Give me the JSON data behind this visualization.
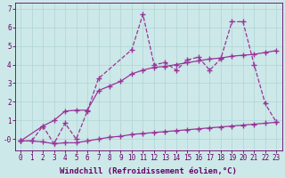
{
  "line1_x": [
    0,
    1,
    2,
    3,
    4,
    5,
    6,
    7,
    10,
    11,
    12,
    13,
    14,
    15,
    16,
    17,
    18,
    19,
    20,
    21,
    22,
    23
  ],
  "line1_y": [
    -0.1,
    -0.1,
    0.7,
    -0.25,
    0.85,
    0.0,
    1.5,
    3.25,
    4.8,
    6.7,
    4.0,
    4.1,
    3.7,
    4.25,
    4.4,
    3.7,
    4.3,
    6.3,
    6.3,
    4.0,
    1.9,
    0.9
  ],
  "line2_x": [
    0,
    2,
    3,
    4,
    5,
    6,
    7,
    8,
    9,
    10,
    11,
    12,
    13,
    14,
    15,
    16,
    17,
    18,
    19,
    20,
    21,
    22,
    23
  ],
  "line2_y": [
    -0.1,
    0.7,
    1.0,
    1.5,
    1.55,
    1.55,
    2.6,
    2.85,
    3.1,
    3.5,
    3.7,
    3.85,
    3.9,
    4.0,
    4.1,
    4.2,
    4.3,
    4.35,
    4.45,
    4.5,
    4.55,
    4.65,
    4.75
  ],
  "line3_x": [
    0,
    1,
    2,
    3,
    4,
    5,
    6,
    7,
    8,
    9,
    10,
    11,
    12,
    13,
    14,
    15,
    16,
    17,
    18,
    19,
    20,
    21,
    22,
    23
  ],
  "line3_y": [
    -0.1,
    -0.1,
    -0.15,
    -0.25,
    -0.2,
    -0.2,
    -0.1,
    0.0,
    0.1,
    0.15,
    0.25,
    0.3,
    0.35,
    0.4,
    0.45,
    0.5,
    0.55,
    0.6,
    0.65,
    0.7,
    0.75,
    0.8,
    0.85,
    0.9
  ],
  "line_color": "#993399",
  "background_color": "#cce8e8",
  "grid_color": "#b0d4d4",
  "xlabel": "Windchill (Refroidissement éolien,°C)",
  "xlabel_color": "#660066",
  "tick_color": "#660066",
  "xlim": [
    -0.5,
    23.5
  ],
  "ylim": [
    -0.6,
    7.3
  ],
  "yticks": [
    0,
    1,
    2,
    3,
    4,
    5,
    6,
    7
  ],
  "ytick_labels": [
    "-0",
    "1",
    "2",
    "3",
    "4",
    "5",
    "6",
    "7"
  ],
  "xticks": [
    0,
    1,
    2,
    3,
    4,
    5,
    6,
    7,
    8,
    9,
    10,
    11,
    12,
    13,
    14,
    15,
    16,
    17,
    18,
    19,
    20,
    21,
    22,
    23
  ],
  "marker": "+",
  "markersize": 4,
  "linewidth": 0.9,
  "xlabel_fontsize": 6.5,
  "tick_fontsize": 5.5
}
